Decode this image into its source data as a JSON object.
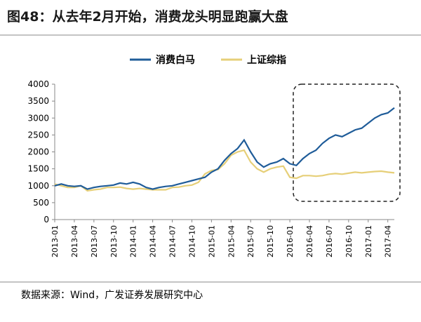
{
  "chart_data": {
    "type": "line",
    "title": "图48：从去年2月开始，消费龙头明显跑赢大盘",
    "source": "数据来源：Wind，广发证券发展研究中心",
    "x": [
      "2013-01",
      "2013-02",
      "2013-03",
      "2013-04",
      "2013-05",
      "2013-06",
      "2013-07",
      "2013-08",
      "2013-09",
      "2013-10",
      "2013-11",
      "2013-12",
      "2014-01",
      "2014-02",
      "2014-03",
      "2014-04",
      "2014-05",
      "2014-06",
      "2014-07",
      "2014-08",
      "2014-09",
      "2014-10",
      "2014-11",
      "2014-12",
      "2015-01",
      "2015-02",
      "2015-03",
      "2015-04",
      "2015-05",
      "2015-06",
      "2015-07",
      "2015-08",
      "2015-09",
      "2015-10",
      "2015-11",
      "2015-12",
      "2016-01",
      "2016-02",
      "2016-03",
      "2016-04",
      "2016-05",
      "2016-06",
      "2016-07",
      "2016-08",
      "2016-09",
      "2016-10",
      "2016-11",
      "2016-12",
      "2017-01",
      "2017-02",
      "2017-03",
      "2017-04",
      "2017-05"
    ],
    "xticks": [
      "2013-01",
      "2013-04",
      "2013-07",
      "2013-10",
      "2014-01",
      "2014-04",
      "2014-07",
      "2014-10",
      "2015-01",
      "2015-04",
      "2015-07",
      "2015-10",
      "2016-01",
      "2016-04",
      "2016-07",
      "2016-10",
      "2017-01",
      "2017-04"
    ],
    "series": [
      {
        "name": "消费白马",
        "color": "#1f5c99",
        "values": [
          1000,
          1050,
          1000,
          980,
          1000,
          900,
          950,
          980,
          1000,
          1020,
          1080,
          1050,
          1100,
          1050,
          950,
          900,
          950,
          980,
          1000,
          1050,
          1100,
          1150,
          1200,
          1250,
          1400,
          1500,
          1750,
          1950,
          2100,
          2350,
          2000,
          1700,
          1550,
          1650,
          1700,
          1800,
          1650,
          1600,
          1800,
          1950,
          2050,
          2250,
          2400,
          2500,
          2450,
          2550,
          2650,
          2700,
          2850,
          3000,
          3100,
          3150,
          3300
        ]
      },
      {
        "name": "上证综指",
        "color": "#e6cf78",
        "values": [
          1050,
          1000,
          950,
          950,
          1000,
          850,
          880,
          900,
          950,
          950,
          960,
          920,
          900,
          920,
          900,
          880,
          880,
          880,
          950,
          960,
          1000,
          1020,
          1100,
          1350,
          1450,
          1480,
          1650,
          1900,
          2000,
          2050,
          1700,
          1500,
          1400,
          1500,
          1550,
          1580,
          1250,
          1220,
          1300,
          1300,
          1280,
          1300,
          1340,
          1360,
          1340,
          1370,
          1400,
          1380,
          1400,
          1420,
          1430,
          1400,
          1380
        ]
      }
    ],
    "ylim": [
      0,
      4000
    ],
    "yticks": [
      0,
      500,
      1000,
      1500,
      2000,
      2500,
      3000,
      3500,
      4000
    ],
    "legend": "top"
  }
}
